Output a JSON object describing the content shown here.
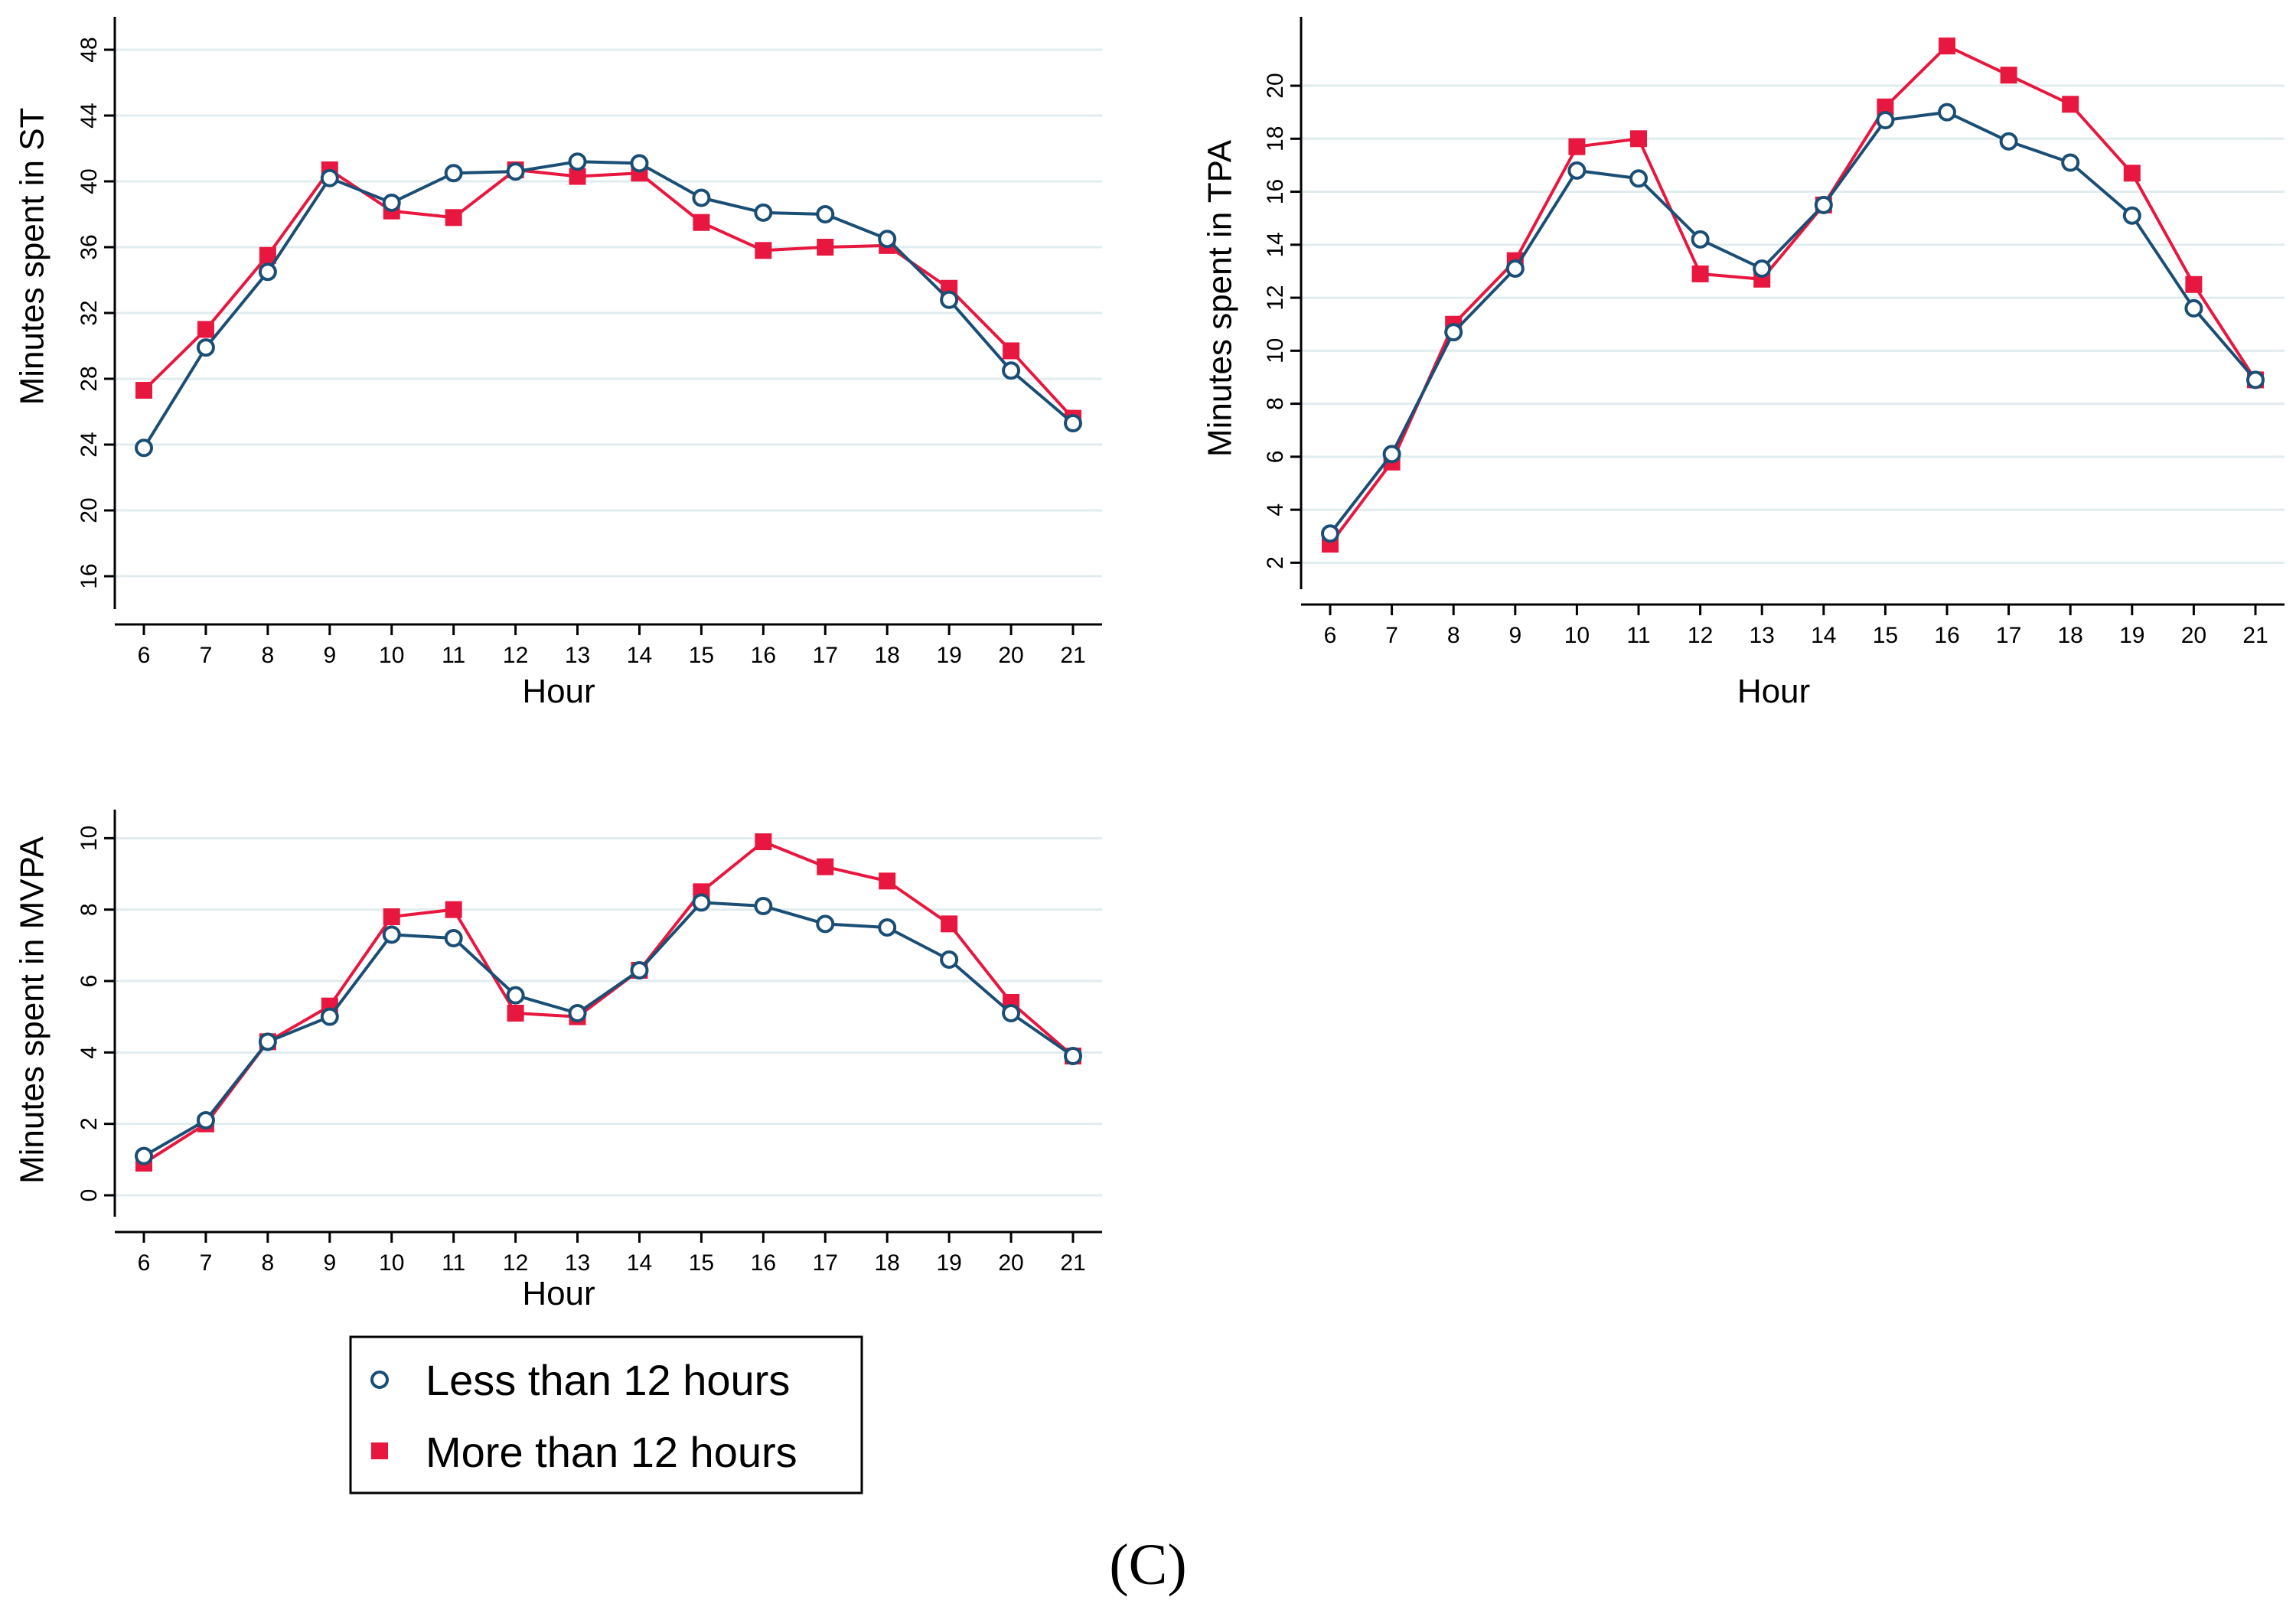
{
  "figure_label": "(C)",
  "legend": {
    "items": [
      {
        "label": "Less than 12 hours",
        "marker": "hollow-circle-icon",
        "color": "#1a4e74"
      },
      {
        "label": "More than 12 hours",
        "marker": "filled-square-icon",
        "color": "#e8173f"
      }
    ]
  },
  "chart_data": [
    {
      "type": "line",
      "ylabel": "Minutes spent in ST",
      "xlabel": "Hour",
      "x": [
        6,
        7,
        8,
        9,
        10,
        11,
        12,
        13,
        14,
        15,
        16,
        17,
        18,
        19,
        20,
        21
      ],
      "ylim": [
        14,
        50
      ],
      "yticks": [
        16,
        20,
        24,
        28,
        32,
        36,
        40,
        44,
        48
      ],
      "grid": true,
      "series": [
        {
          "name": "Less than 12 hours",
          "color": "#1a4e74",
          "marker": "circle",
          "values": [
            23.8,
            29.9,
            34.5,
            40.2,
            38.7,
            40.5,
            40.6,
            41.2,
            41.1,
            39.0,
            38.1,
            38.0,
            36.5,
            32.8,
            28.5,
            25.3
          ]
        },
        {
          "name": "More than 12 hours",
          "color": "#e8173f",
          "marker": "square",
          "values": [
            27.3,
            31.0,
            35.5,
            40.7,
            38.2,
            37.8,
            40.7,
            40.3,
            40.5,
            37.5,
            35.8,
            36.0,
            36.1,
            33.5,
            29.7,
            25.6
          ]
        }
      ]
    },
    {
      "type": "line",
      "ylabel": "Minutes spent in TPA",
      "xlabel": "Hour",
      "x": [
        6,
        7,
        8,
        9,
        10,
        11,
        12,
        13,
        14,
        15,
        16,
        17,
        18,
        19,
        20,
        21
      ],
      "ylim": [
        1,
        22.6
      ],
      "yticks": [
        2,
        4,
        6,
        8,
        10,
        12,
        14,
        16,
        18,
        20
      ],
      "grid": true,
      "series": [
        {
          "name": "Less than 12 hours",
          "color": "#1a4e74",
          "marker": "circle",
          "values": [
            3.1,
            6.1,
            10.7,
            13.1,
            16.8,
            16.5,
            14.2,
            13.1,
            15.5,
            18.7,
            19.0,
            17.9,
            17.1,
            15.1,
            11.6,
            8.9
          ]
        },
        {
          "name": "More than 12 hours",
          "color": "#e8173f",
          "marker": "square",
          "values": [
            2.7,
            5.8,
            11.0,
            13.4,
            17.7,
            18.0,
            12.9,
            12.7,
            15.5,
            19.2,
            21.5,
            20.4,
            19.3,
            16.7,
            12.5,
            8.9
          ]
        }
      ]
    },
    {
      "type": "line",
      "ylabel": "Minutes spent in MVPA",
      "xlabel": "Hour",
      "x": [
        6,
        7,
        8,
        9,
        10,
        11,
        12,
        13,
        14,
        15,
        16,
        17,
        18,
        19,
        20,
        21
      ],
      "ylim": [
        -0.6,
        10.8
      ],
      "yticks": [
        0,
        2,
        4,
        6,
        8,
        10
      ],
      "grid": true,
      "series": [
        {
          "name": "Less than 12 hours",
          "color": "#1a4e74",
          "marker": "circle",
          "values": [
            1.1,
            2.1,
            4.3,
            5.0,
            7.3,
            7.2,
            5.6,
            5.1,
            6.3,
            8.2,
            8.1,
            7.6,
            7.5,
            6.6,
            5.1,
            3.9
          ]
        },
        {
          "name": "More than 12 hours",
          "color": "#e8173f",
          "marker": "square",
          "values": [
            0.9,
            2.0,
            4.3,
            5.3,
            7.8,
            8.0,
            5.1,
            5.0,
            6.3,
            8.5,
            9.9,
            9.2,
            8.8,
            7.6,
            5.4,
            3.9
          ]
        }
      ]
    }
  ]
}
